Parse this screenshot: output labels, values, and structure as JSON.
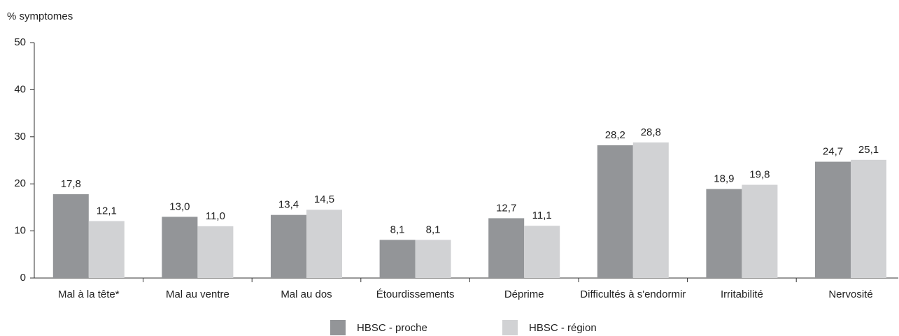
{
  "chart_data": {
    "type": "bar",
    "y_label": "% symptomes",
    "categories": [
      "Mal à la tête*",
      "Mal au ventre",
      "Mal au dos",
      "Étourdissements",
      "Déprime",
      "Difficultés à s'endormir",
      "Irritabilité",
      "Nervosité"
    ],
    "series": [
      {
        "name": "HBSC - proche",
        "color": "#939598",
        "values": [
          17.8,
          13.0,
          13.4,
          8.1,
          12.7,
          28.2,
          18.9,
          24.7
        ],
        "value_labels": [
          "17,8",
          "13,0",
          "13,4",
          "8,1",
          "12,7",
          "28,2",
          "18,9",
          "24,7"
        ]
      },
      {
        "name": "HBSC - région",
        "color": "#d1d2d4",
        "values": [
          12.1,
          11.0,
          14.5,
          8.1,
          11.1,
          28.8,
          19.8,
          25.1
        ],
        "value_labels": [
          "12,1",
          "11,0",
          "14,5",
          "8,1",
          "11,1",
          "28,8",
          "19,8",
          "25,1"
        ]
      }
    ],
    "ylim": [
      0,
      50
    ],
    "yticks": [
      0,
      10,
      20,
      30,
      40,
      50
    ],
    "grid": false,
    "legend": "bottom"
  }
}
